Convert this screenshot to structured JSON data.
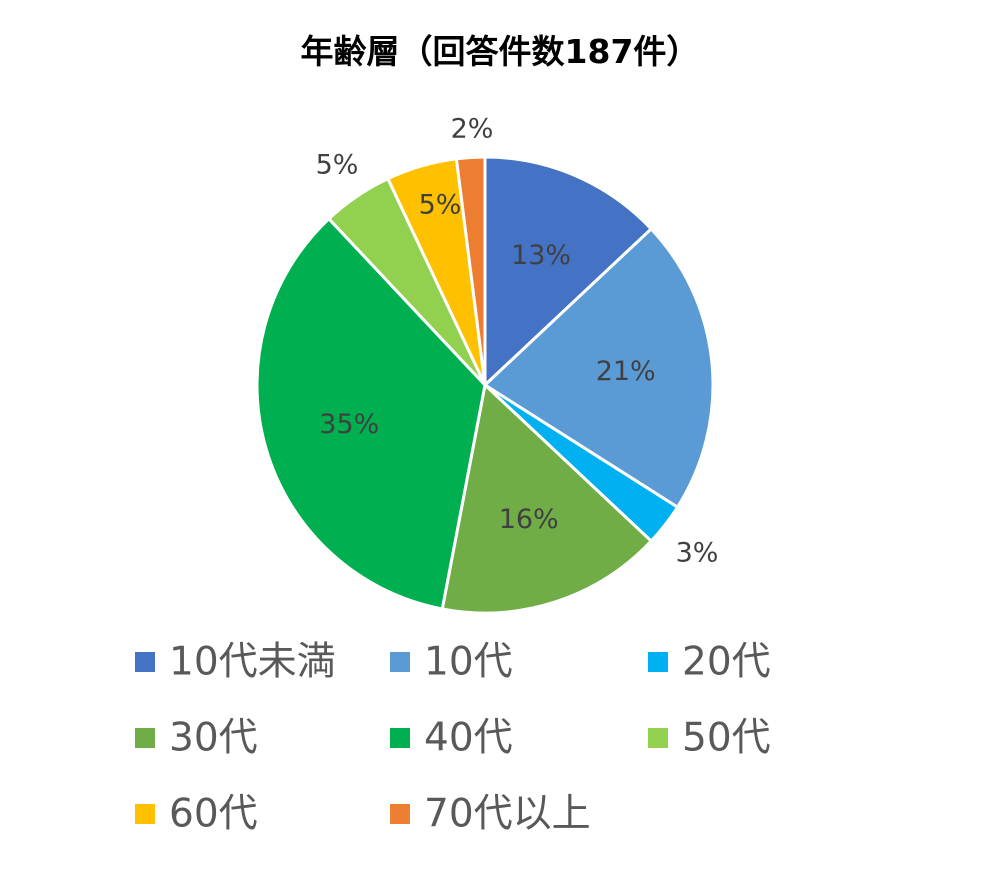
{
  "chart_data": {
    "type": "pie",
    "title": "年齢層（回答件数187件）",
    "slices": [
      {
        "name": "10代未満",
        "value": 13,
        "label": "13%",
        "color": "#4472C4"
      },
      {
        "name": "10代",
        "value": 21,
        "label": "21%",
        "color": "#5B9BD5"
      },
      {
        "name": "20代",
        "value": 3,
        "label": "3%",
        "color": "#00B0F0"
      },
      {
        "name": "30代",
        "value": 16,
        "label": "16%",
        "color": "#70AD47"
      },
      {
        "name": "40代",
        "value": 35,
        "label": "35%",
        "color": "#00B050"
      },
      {
        "name": "50代",
        "value": 5,
        "label": "5%",
        "color": "#92D050"
      },
      {
        "name": "60代",
        "value": 5,
        "label": "5%",
        "color": "#FFC000"
      },
      {
        "name": "70代以上",
        "value": 2,
        "label": "2%",
        "color": "#ED7D31"
      }
    ],
    "start": "12 o'clock",
    "direction": "clockwise",
    "legend_position": "bottom",
    "legend_columns": 3
  }
}
